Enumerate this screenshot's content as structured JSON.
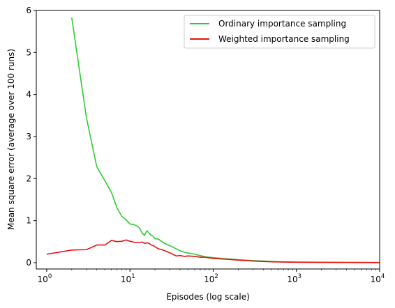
{
  "chart_data": {
    "type": "line",
    "title": "",
    "xlabel": "Episodes (log scale)",
    "ylabel": "Mean square error (average over 100 runs)",
    "xscale": "log",
    "xlim": [
      0.75,
      10000
    ],
    "ylim": [
      -0.15,
      6
    ],
    "xticks": [
      {
        "base": "10",
        "exp": "0",
        "value": 1
      },
      {
        "base": "10",
        "exp": "1",
        "value": 10
      },
      {
        "base": "10",
        "exp": "2",
        "value": 100
      },
      {
        "base": "10",
        "exp": "3",
        "value": 1000
      },
      {
        "base": "10",
        "exp": "4",
        "value": 10000
      }
    ],
    "yticks": [
      "0",
      "1",
      "2",
      "3",
      "4",
      "5",
      "6"
    ],
    "grid": false,
    "legend_position": "top-right",
    "series": [
      {
        "name": "Ordinary importance sampling",
        "color": "#2ecc33",
        "x": [
          2,
          3,
          4,
          5,
          6,
          7,
          8,
          9,
          10,
          11,
          12,
          13,
          14,
          15,
          16,
          17,
          18,
          19,
          20,
          22,
          25,
          28,
          32,
          36,
          40,
          45,
          50,
          60,
          70,
          80,
          100,
          150,
          200,
          300,
          500,
          700,
          1000,
          2000,
          5000,
          10000
        ],
        "values": [
          5.83,
          3.45,
          2.28,
          1.95,
          1.67,
          1.3,
          1.1,
          1.02,
          0.92,
          0.91,
          0.88,
          0.83,
          0.7,
          0.65,
          0.76,
          0.7,
          0.65,
          0.63,
          0.57,
          0.56,
          0.48,
          0.43,
          0.38,
          0.33,
          0.28,
          0.25,
          0.23,
          0.2,
          0.17,
          0.14,
          0.12,
          0.09,
          0.07,
          0.05,
          0.03,
          0.02,
          0.015,
          0.01,
          0.006,
          0.004
        ]
      },
      {
        "name": "Weighted importance sampling",
        "color": "#e8100f",
        "x": [
          1,
          2,
          3,
          4,
          5,
          6,
          7,
          8,
          9,
          10,
          11,
          12,
          13,
          14,
          15,
          16,
          17,
          18,
          19,
          20,
          22,
          25,
          28,
          32,
          36,
          40,
          45,
          50,
          60,
          70,
          80,
          100,
          150,
          200,
          300,
          500,
          700,
          1000,
          2000,
          5000,
          10000
        ],
        "values": [
          0.2,
          0.3,
          0.31,
          0.42,
          0.42,
          0.53,
          0.5,
          0.51,
          0.54,
          0.51,
          0.49,
          0.48,
          0.48,
          0.49,
          0.46,
          0.47,
          0.46,
          0.42,
          0.41,
          0.38,
          0.33,
          0.3,
          0.26,
          0.21,
          0.16,
          0.17,
          0.15,
          0.16,
          0.15,
          0.13,
          0.13,
          0.1,
          0.08,
          0.06,
          0.04,
          0.02,
          0.015,
          0.01,
          0.006,
          0.004,
          0.003
        ]
      }
    ]
  }
}
